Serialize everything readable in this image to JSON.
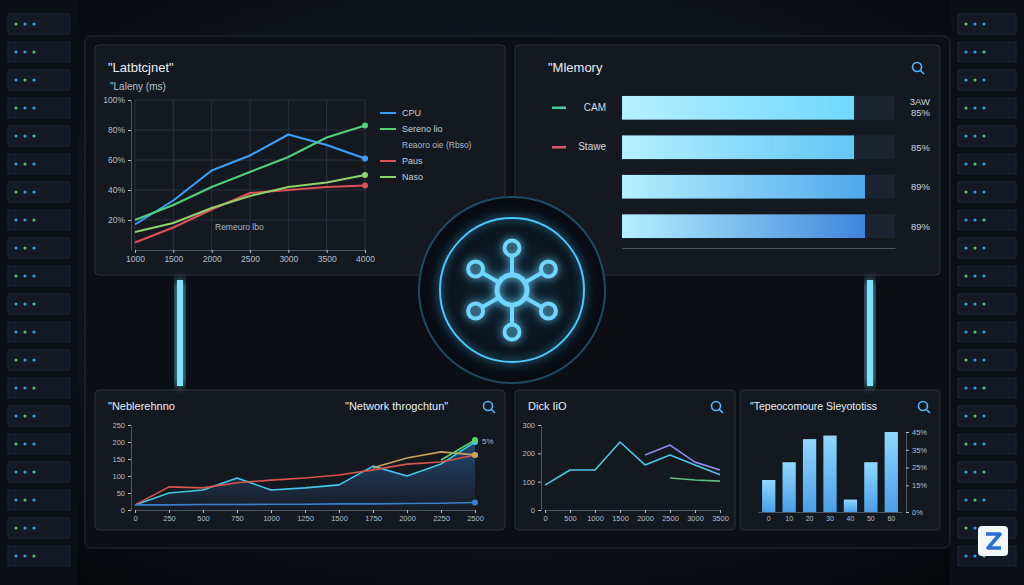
{
  "chart_data": [
    {
      "type": "line",
      "title": "\"Latbtcjnet\"",
      "subtitle": "\"Laleny (ms)",
      "categories": [
        "1000",
        "1500",
        "2000",
        "2500",
        "3000",
        "3500",
        "4000"
      ],
      "series": [
        {
          "name": "CPU",
          "color": "#3aa0ff",
          "values": [
            17,
            33,
            53,
            63,
            77,
            70,
            61
          ]
        },
        {
          "name": "Sereno lio",
          "color": "#4fd17a",
          "values": [
            20,
            30,
            42,
            52,
            62,
            75,
            83
          ]
        },
        {
          "name": "Paus",
          "color": "#e0505a",
          "values": [
            5,
            15,
            27,
            38,
            40,
            42,
            43
          ]
        },
        {
          "name": "Naso",
          "color": "#8fd36a",
          "values": [
            12,
            18,
            28,
            36,
            42,
            45,
            50
          ]
        }
      ],
      "ylim": [
        0,
        100
      ],
      "yticks": [
        {
          "value": 20,
          "label": "20%"
        },
        {
          "value": 40,
          "label": "40%"
        },
        {
          "value": 60,
          "label": "60%"
        },
        {
          "value": 80,
          "label": "80%"
        },
        {
          "value": 100,
          "label": "100%"
        }
      ],
      "grid": true,
      "legend": "right",
      "annotations": [
        "Reaoro oie (Rbso)",
        "Remeuro lbo"
      ]
    },
    {
      "type": "bar",
      "orientation": "horizontal",
      "title": "\"Mlemory",
      "categories": [
        "CAM",
        "Stawe",
        null,
        null
      ],
      "values": [
        85,
        85,
        89,
        89
      ],
      "value_labels": [
        "85%",
        "85%",
        "89%",
        "89%"
      ],
      "data_labels": true,
      "colors": [
        "#6fd8ff",
        "#62c6f6",
        "#4ea8ec",
        "#3f86dc"
      ],
      "xlim": [
        0,
        100
      ],
      "tick_labels": "y",
      "annotations": [
        "3AW"
      ]
    },
    {
      "type": "line",
      "title": "\"Neblerehnno",
      "subtitle": "\"Network throgchtun\"",
      "categories": [
        "0",
        "250",
        "500",
        "750",
        "1000",
        "1250",
        "1500",
        "1750",
        "2000",
        "2250",
        "2500"
      ],
      "series": [
        {
          "color": "#42c8e8",
          "values": [
            15,
            50,
            59,
            94,
            59,
            65,
            74,
            129,
            100,
            135,
            200
          ]
        },
        {
          "color": "#d9534f",
          "values": [
            15,
            68,
            65,
            80,
            88,
            94,
            103,
            118,
            135,
            141,
            162
          ]
        },
        {
          "color": "#c9a25a",
          "values": [
            null,
            null,
            null,
            null,
            null,
            null,
            null,
            124,
            153,
            171,
            162
          ]
        },
        {
          "color": "#5fcf6a",
          "values": [
            null,
            null,
            null,
            null,
            null,
            null,
            null,
            null,
            null,
            147,
            206
          ]
        },
        {
          "color": "#3a7fd0",
          "values": [
            15,
            15,
            16,
            16,
            17,
            17,
            18,
            18,
            19,
            20,
            22
          ]
        }
      ],
      "ylim": [
        0,
        250
      ],
      "yticks": [
        0,
        50,
        100,
        150,
        200,
        250
      ],
      "annotations": [
        "5%"
      ]
    },
    {
      "type": "line",
      "title": "Dick IiO",
      "categories": [
        "0",
        "500",
        "1000",
        "1500",
        "2000",
        "2500",
        "3000",
        "3500"
      ],
      "series": [
        {
          "color": "#4ac8e8",
          "values": [
            88,
            141,
            141,
            240,
            159,
            194,
            159,
            124
          ]
        },
        {
          "color": "#8a8ff0",
          "values": [
            null,
            null,
            null,
            null,
            194,
            229,
            169,
            141
          ]
        },
        {
          "color": "#5fbf7a",
          "values": [
            null,
            null,
            null,
            null,
            null,
            113,
            106,
            102
          ]
        }
      ],
      "ylim": [
        0,
        300
      ],
      "yticks": [
        0,
        100,
        200,
        300
      ]
    },
    {
      "type": "bar",
      "title": "\"Tepeocomoure Sleyototiss",
      "categories": [
        "0",
        "10",
        "20",
        "30",
        "40",
        "50",
        "60"
      ],
      "values": [
        18,
        28,
        41,
        43,
        7,
        28,
        45
      ],
      "color": "#4a9fe8",
      "ylim": [
        0,
        45
      ],
      "yticks": [
        {
          "value": 0,
          "label": "0%"
        },
        {
          "value": 15,
          "label": "15%"
        },
        {
          "value": 25,
          "label": "25%"
        },
        {
          "value": 35,
          "label": "35%"
        },
        {
          "value": 45,
          "label": "45%"
        }
      ]
    }
  ]
}
